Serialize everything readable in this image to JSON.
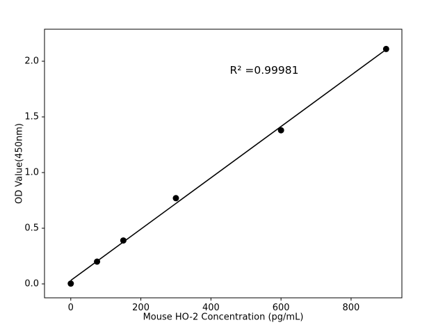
{
  "chart_data": {
    "type": "scatter",
    "title": "",
    "xlabel": "Mouse HO-2 Concentration (pg/mL)",
    "ylabel": "OD Value(450nm)",
    "annotation": "R² =0.99981",
    "x": [
      0,
      75,
      150,
      300,
      600,
      900
    ],
    "y": [
      0.003,
      0.2,
      0.39,
      0.77,
      1.38,
      2.11
    ],
    "fit_line": true,
    "xlim": [
      -75,
      945
    ],
    "ylim": [
      -0.125,
      2.2875
    ],
    "xticks": [
      0,
      200,
      400,
      600,
      800
    ],
    "yticks": [
      0.0,
      0.5,
      1.0,
      1.5,
      2.0
    ],
    "marker_color": "#000000",
    "line_color": "#000000",
    "background": "#ffffff",
    "grid": false,
    "legend": "none"
  }
}
